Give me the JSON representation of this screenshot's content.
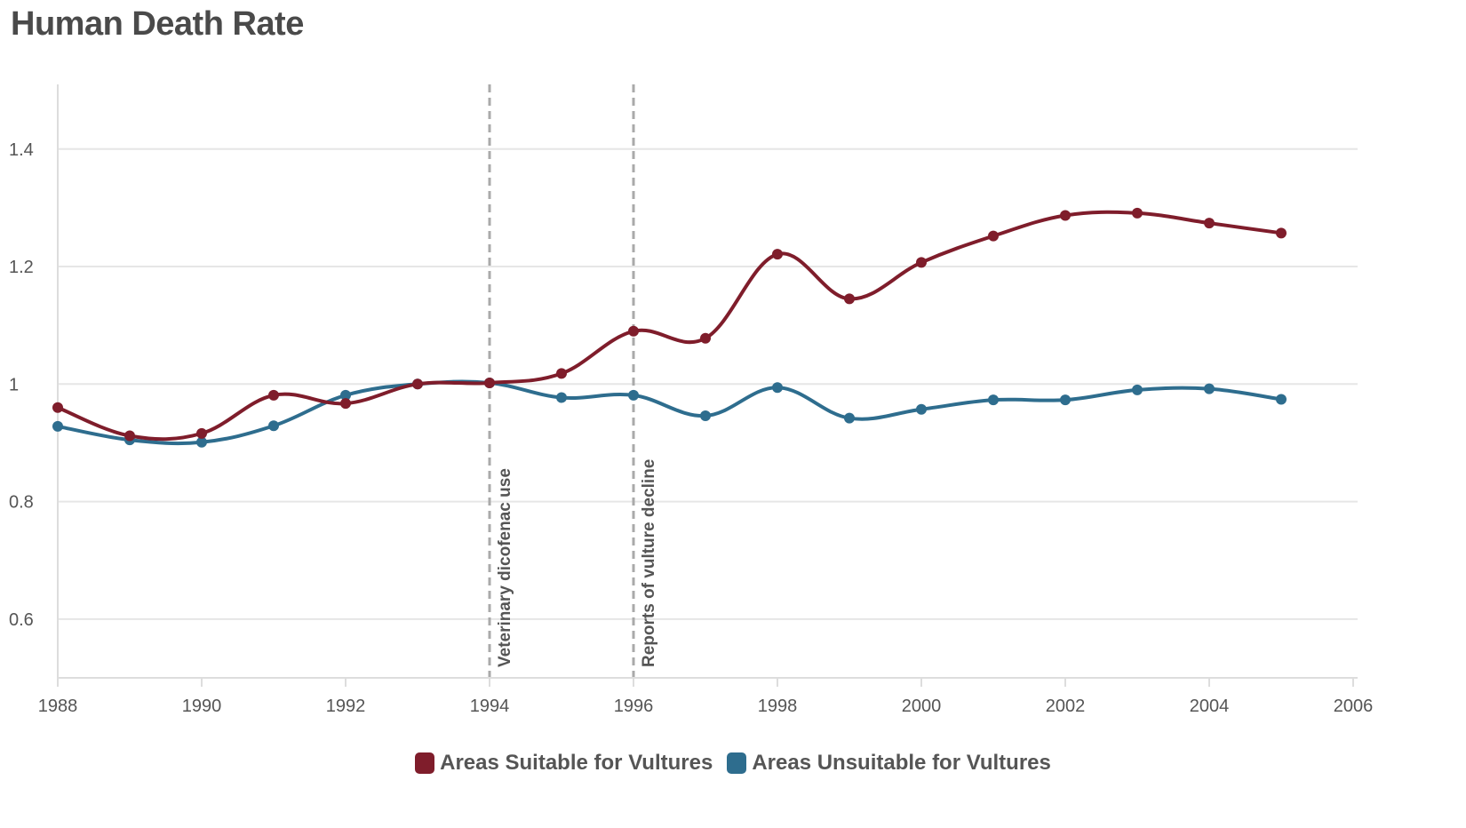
{
  "title": "Human Death Rate",
  "colors": {
    "grid": "#e6e6e6",
    "axis": "#dddddd",
    "annotation": "#aaaaaa"
  },
  "chart_data": {
    "type": "line",
    "title": "Human Death Rate",
    "xlabel": "",
    "ylabel": "",
    "xlim": [
      1988,
      2006
    ],
    "ylim": [
      0.5,
      1.51
    ],
    "x_ticks": [
      1988,
      1990,
      1992,
      1994,
      1996,
      1998,
      2000,
      2002,
      2004,
      2006
    ],
    "y_ticks": [
      0.6,
      0.8,
      1,
      1.2,
      1.4
    ],
    "grid": true,
    "legend_position": "bottom",
    "x": [
      1988,
      1989,
      1990,
      1991,
      1992,
      1993,
      1994,
      1995,
      1996,
      1997,
      1998,
      1999,
      2000,
      2001,
      2002,
      2003,
      2004,
      2005
    ],
    "series": [
      {
        "name": "Areas Suitable for Vultures",
        "color": "#7f1d2b",
        "values": [
          0.96,
          0.912,
          0.916,
          0.981,
          0.967,
          1.0,
          1.002,
          1.018,
          1.09,
          1.078,
          1.221,
          1.145,
          1.207,
          1.252,
          1.287,
          1.291,
          1.274,
          1.257
        ]
      },
      {
        "name": "Areas Unsuitable for Vultures",
        "color": "#2e6d8e",
        "values": [
          0.928,
          0.905,
          0.901,
          0.929,
          0.981,
          1.0,
          1.002,
          0.977,
          0.981,
          0.946,
          0.994,
          0.942,
          0.957,
          0.973,
          0.973,
          0.99,
          0.992,
          0.974
        ]
      }
    ],
    "annotations": [
      {
        "x": 1994,
        "label": "Veterinary dicofenac use"
      },
      {
        "x": 1996,
        "label": "Reports of vulture decline"
      }
    ]
  }
}
